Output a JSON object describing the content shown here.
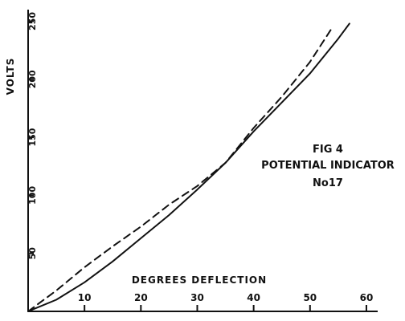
{
  "chart_data": {
    "type": "line",
    "title": "FIG 4",
    "subtitle": "POTENTIAL INDICATOR",
    "annotation": "No17",
    "xlabel": "DEGREES DEFLECTION",
    "ylabel": "VOLTS",
    "xlim": [
      0,
      62
    ],
    "ylim": [
      0,
      260
    ],
    "xticks": [
      10,
      20,
      30,
      40,
      50,
      60
    ],
    "xtick_labels": [
      "10",
      "20",
      "30",
      "40",
      "50",
      "60"
    ],
    "yticks": [
      50,
      100,
      150,
      200,
      250
    ],
    "ytick_labels": [
      "50",
      "100",
      "150",
      "200",
      "250"
    ],
    "grid": false,
    "legend": "none",
    "series": [
      {
        "style": "solid",
        "color": "#111111",
        "x": [
          0,
          5,
          10,
          15,
          20,
          25,
          30,
          35,
          40,
          45,
          50,
          55,
          57
        ],
        "y": [
          0,
          10,
          25,
          43,
          63,
          83,
          105,
          128,
          155,
          180,
          205,
          235,
          248
        ]
      },
      {
        "style": "dashed",
        "color": "#111111",
        "x": [
          0,
          5,
          10,
          15,
          20,
          25,
          30,
          35,
          40,
          45,
          50,
          54
        ],
        "y": [
          0,
          18,
          38,
          56,
          73,
          92,
          108,
          128,
          158,
          185,
          215,
          245
        ]
      }
    ]
  }
}
